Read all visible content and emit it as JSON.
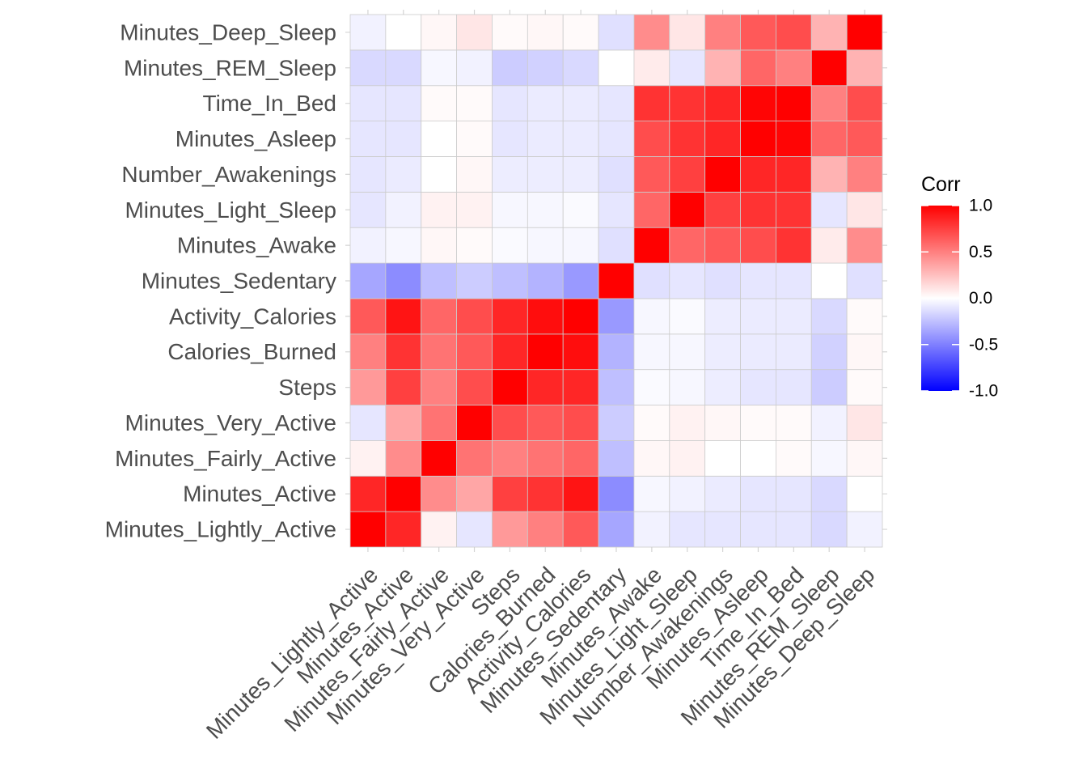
{
  "chart_data": {
    "type": "heatmap",
    "title": "",
    "xlabel": "",
    "ylabel": "",
    "variables": [
      "Minutes_Lightly_Active",
      "Minutes_Active",
      "Minutes_Fairly_Active",
      "Minutes_Very_Active",
      "Steps",
      "Calories_Burned",
      "Activity_Calories",
      "Minutes_Sedentary",
      "Minutes_Awake",
      "Minutes_Light_Sleep",
      "Number_Awakenings",
      "Minutes_Asleep",
      "Time_In_Bed",
      "Minutes_REM_Sleep",
      "Minutes_Deep_Sleep"
    ],
    "matrix": [
      [
        1.0,
        0.85,
        0.05,
        -0.1,
        0.4,
        0.5,
        0.65,
        -0.35,
        -0.05,
        -0.1,
        -0.1,
        -0.1,
        -0.1,
        -0.15,
        -0.05
      ],
      [
        0.85,
        1.0,
        0.45,
        0.35,
        0.75,
        0.8,
        0.92,
        -0.45,
        -0.03,
        -0.05,
        -0.08,
        -0.1,
        -0.1,
        -0.15,
        0.0
      ],
      [
        0.05,
        0.45,
        1.0,
        0.55,
        0.5,
        0.55,
        0.6,
        -0.25,
        0.03,
        0.05,
        0.0,
        0.0,
        0.02,
        -0.03,
        0.03
      ],
      [
        -0.1,
        0.35,
        0.55,
        1.0,
        0.7,
        0.65,
        0.7,
        -0.2,
        0.02,
        0.05,
        0.03,
        0.02,
        0.02,
        -0.05,
        0.1
      ],
      [
        0.4,
        0.75,
        0.5,
        0.7,
        1.0,
        0.85,
        0.85,
        -0.25,
        -0.02,
        -0.03,
        -0.07,
        -0.1,
        -0.1,
        -0.2,
        0.02
      ],
      [
        0.5,
        0.8,
        0.55,
        0.65,
        0.85,
        1.0,
        0.95,
        -0.3,
        -0.03,
        -0.03,
        -0.07,
        -0.08,
        -0.08,
        -0.18,
        0.03
      ],
      [
        0.65,
        0.92,
        0.6,
        0.7,
        0.85,
        0.95,
        1.0,
        -0.4,
        -0.03,
        -0.02,
        -0.07,
        -0.08,
        -0.08,
        -0.15,
        0.02
      ],
      [
        -0.35,
        -0.45,
        -0.25,
        -0.2,
        -0.25,
        -0.3,
        -0.4,
        1.0,
        -0.12,
        -0.1,
        -0.12,
        -0.1,
        -0.1,
        0.0,
        -0.12
      ],
      [
        -0.05,
        -0.03,
        0.03,
        0.02,
        -0.02,
        -0.03,
        -0.03,
        -0.12,
        1.0,
        0.6,
        0.65,
        0.7,
        0.8,
        0.08,
        0.45
      ],
      [
        -0.1,
        -0.05,
        0.05,
        0.05,
        -0.03,
        -0.03,
        -0.02,
        -0.1,
        0.6,
        1.0,
        0.75,
        0.8,
        0.8,
        -0.1,
        0.1
      ],
      [
        -0.1,
        -0.08,
        0.0,
        0.03,
        -0.07,
        -0.07,
        -0.07,
        -0.12,
        0.65,
        0.75,
        1.0,
        0.85,
        0.85,
        0.3,
        0.5
      ],
      [
        -0.1,
        -0.1,
        0.0,
        0.02,
        -0.1,
        -0.08,
        -0.08,
        -0.1,
        0.7,
        0.8,
        0.85,
        1.0,
        0.98,
        0.6,
        0.65
      ],
      [
        -0.1,
        -0.1,
        0.02,
        0.02,
        -0.1,
        -0.08,
        -0.08,
        -0.1,
        0.8,
        0.8,
        0.85,
        0.98,
        1.0,
        0.5,
        0.7
      ],
      [
        -0.15,
        -0.15,
        -0.03,
        -0.05,
        -0.2,
        -0.18,
        -0.15,
        0.0,
        0.08,
        -0.1,
        0.3,
        0.6,
        0.5,
        1.0,
        0.3
      ],
      [
        -0.05,
        0.0,
        0.03,
        0.1,
        0.02,
        0.03,
        0.02,
        -0.12,
        0.45,
        0.1,
        0.5,
        0.65,
        0.7,
        0.3,
        1.0
      ]
    ],
    "color_scale": {
      "low": "#0000FF",
      "mid": "#FFFFFF",
      "high": "#FF0000",
      "limits": [
        -1,
        1
      ]
    },
    "legend": {
      "title": "Corr",
      "position": "right",
      "ticks": [
        "1.0",
        "0.5",
        "0.0",
        "-0.5",
        "-1.0"
      ]
    },
    "grid_color": "#d4d4d4",
    "tile_border_color": "#cccccc"
  }
}
